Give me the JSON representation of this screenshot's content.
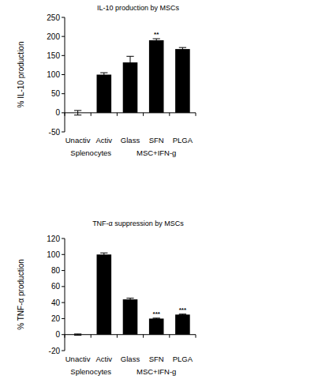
{
  "chart_data": [
    {
      "type": "bar",
      "title": "IL-10 production by MSCs",
      "y_label": "% IL-10 production",
      "categories": [
        "Unactiv",
        "Activ",
        "Glass",
        "SFN",
        "PLGA"
      ],
      "values": [
        0,
        100,
        132,
        190,
        167
      ],
      "errors": [
        6,
        5,
        16,
        4,
        4
      ],
      "color": "#000000",
      "groups": [
        {
          "name": "Splenocytes",
          "size": 2
        },
        {
          "name": "MSC+IFN-g",
          "size": 3
        }
      ],
      "annotations": [
        {
          "text": "**",
          "category": "SFN"
        }
      ],
      "ylim": [
        -50,
        250
      ],
      "yticks": [
        -50,
        0,
        50,
        100,
        150,
        200,
        250
      ],
      "grid": false
    },
    {
      "type": "bar",
      "title": "TNF-α suppression by MSCs",
      "y_label": "% TNF-α production",
      "categories": [
        "Unactiv",
        "Activ",
        "Glass",
        "SFN",
        "PLGA"
      ],
      "values": [
        0,
        100,
        44,
        20,
        25
      ],
      "errors": [
        0.8,
        2,
        1.5,
        0.6,
        0.6
      ],
      "color": "#000000",
      "groups": [
        {
          "name": "Splenocytes",
          "size": 2
        },
        {
          "name": "MSC+IFN-g",
          "size": 3
        }
      ],
      "annotations": [
        {
          "text": "***",
          "category": "SFN"
        },
        {
          "text": "***",
          "category": "PLGA"
        }
      ],
      "ylim": [
        -20,
        120
      ],
      "yticks": [
        -20,
        0,
        20,
        40,
        60,
        80,
        100,
        120
      ],
      "grid": false
    }
  ]
}
